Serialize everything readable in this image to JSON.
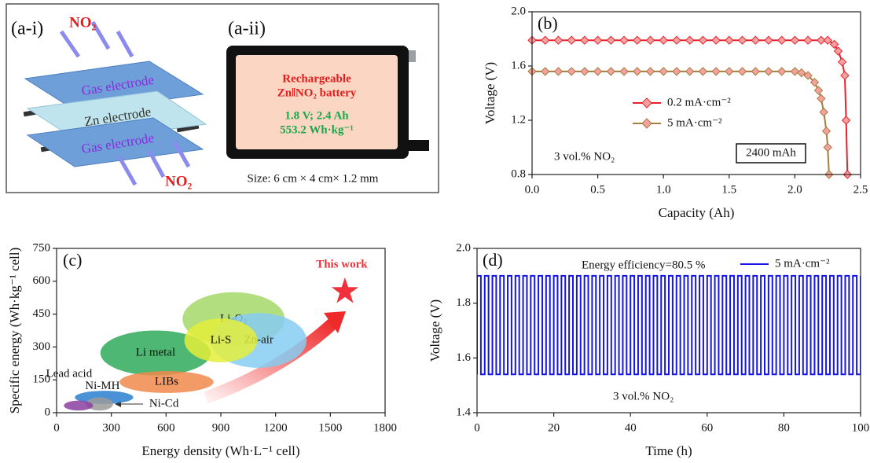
{
  "diagram_a": {
    "panel_i": {
      "label": "(a-i)",
      "top_gas": "NO₂",
      "layers": [
        "Gas electrode",
        "Zn electrode",
        "Gas electrode"
      ],
      "bottom_gas": "NO₂"
    },
    "panel_ii": {
      "label": "(a-ii)",
      "lines": [
        "Rechargeable",
        "Zn‖NO₂ battery",
        "1.8 V; 2.4 Ah",
        "553.2 Wh·kg⁻¹"
      ],
      "size": "Size: 6 cm × 4 cm× 1.2 mm"
    }
  },
  "chart_data": [
    {
      "type": "line",
      "panel_label": "(b)",
      "x_label": "Capacity (Ah)",
      "y_label": "Voltage (V)",
      "xlim": [
        0,
        2.5
      ],
      "xticks": [
        {
          "value": 0,
          "label": "0.0"
        },
        0.5,
        {
          "value": 1,
          "label": "1.0"
        },
        1.5,
        {
          "value": 2,
          "label": "2.0"
        },
        2.5
      ],
      "ylim": [
        0.8,
        2.0
      ],
      "yticks": [
        0.8,
        1.2,
        1.6,
        {
          "value": 2,
          "label": "2.0"
        }
      ],
      "annotations": [
        "3 vol.% NO₂",
        "2400 mAh"
      ],
      "series": [
        {
          "name": "0.2 mA·cm⁻²",
          "color": "#e8222a",
          "marker": "diamond",
          "x": [
            0,
            0.1,
            0.2,
            0.3,
            0.4,
            0.5,
            0.6,
            0.7,
            0.8,
            0.9,
            1.0,
            1.1,
            1.2,
            1.3,
            1.4,
            1.5,
            1.6,
            1.7,
            1.8,
            1.9,
            2.0,
            2.1,
            2.2,
            2.25,
            2.3,
            2.33,
            2.36,
            2.38,
            2.39,
            2.4
          ],
          "values": [
            1.79,
            1.79,
            1.79,
            1.79,
            1.79,
            1.79,
            1.79,
            1.79,
            1.79,
            1.79,
            1.79,
            1.79,
            1.79,
            1.79,
            1.79,
            1.79,
            1.79,
            1.79,
            1.79,
            1.79,
            1.79,
            1.79,
            1.79,
            1.79,
            1.76,
            1.71,
            1.63,
            1.53,
            1.2,
            0.8
          ]
        },
        {
          "name": "5 mA·cm⁻²",
          "color": "#a57d3c",
          "marker": "diamond",
          "x": [
            0,
            0.1,
            0.2,
            0.3,
            0.4,
            0.5,
            0.6,
            0.7,
            0.8,
            0.9,
            1.0,
            1.1,
            1.2,
            1.3,
            1.4,
            1.5,
            1.6,
            1.7,
            1.8,
            1.9,
            2.0,
            2.05,
            2.1,
            2.15,
            2.18,
            2.2,
            2.22,
            2.24,
            2.25,
            2.26
          ],
          "values": [
            1.56,
            1.56,
            1.56,
            1.56,
            1.56,
            1.56,
            1.56,
            1.56,
            1.56,
            1.56,
            1.56,
            1.56,
            1.56,
            1.56,
            1.56,
            1.56,
            1.56,
            1.56,
            1.56,
            1.56,
            1.56,
            1.55,
            1.53,
            1.48,
            1.42,
            1.36,
            1.26,
            1.12,
            1.0,
            0.8
          ]
        }
      ]
    },
    {
      "type": "region",
      "panel_label": "(c)",
      "x_label": "Energy density (Wh·L⁻¹ cell)",
      "y_label": "Specific energy (Wh·kg⁻¹ cell)",
      "xlim": [
        0,
        1800
      ],
      "xticks": [
        0,
        300,
        600,
        900,
        1200,
        1500,
        1800
      ],
      "ylim": [
        0,
        750
      ],
      "yticks": [
        0,
        150,
        300,
        450,
        600,
        750
      ],
      "regions": [
        {
          "name": "Li metal",
          "color": "#2eaa5a",
          "xrange": [
            240,
            845
          ],
          "yrange": [
            170,
            375
          ]
        },
        {
          "name": "Li-O₂",
          "color": "#a6d86a",
          "xrange": [
            690,
            1250
          ],
          "yrange": [
            305,
            550
          ]
        },
        {
          "name": "Zn-air",
          "color": "#86cdf2",
          "xrange": [
            845,
            1370
          ],
          "yrange": [
            205,
            455
          ]
        },
        {
          "name": "Li-S",
          "color": "#e4ef3a",
          "xrange": [
            700,
            1100
          ],
          "yrange": [
            230,
            430
          ]
        },
        {
          "name": "LIBs",
          "color": "#f08a4b",
          "xrange": [
            345,
            860
          ],
          "yrange": [
            90,
            190
          ]
        },
        {
          "name": "Ni-MH",
          "color": "#2a7fcf",
          "xrange": [
            100,
            420
          ],
          "yrange": [
            40,
            100
          ]
        },
        {
          "name": "Ni-Cd",
          "color": "#9a9a9a",
          "xrange": [
            160,
            310
          ],
          "yrange": [
            10,
            70
          ]
        },
        {
          "name": "Lead acid",
          "color": "#8b3fa0",
          "xrange": [
            40,
            200
          ],
          "yrange": [
            10,
            55
          ]
        }
      ],
      "highlight": {
        "label": "This work",
        "color": "#f0303a",
        "x": 1580,
        "y": 553
      }
    },
    {
      "type": "line",
      "panel_label": "(d)",
      "x_label": "Time (h)",
      "y_label": "Voltage (V)",
      "xlim": [
        0,
        100
      ],
      "xticks": [
        0,
        20,
        40,
        60,
        80,
        100
      ],
      "ylim": [
        1.4,
        2.0
      ],
      "yticks": [
        1.4,
        1.6,
        1.8,
        {
          "value": 2,
          "label": "2.0"
        }
      ],
      "annotations": [
        "Energy efficiency=80.5 %",
        "3 vol.% NO₂"
      ],
      "series": [
        {
          "name": "5 mA·cm⁻²",
          "color": "#1515e6",
          "x": [
            0,
            0,
            1,
            1,
            2,
            2,
            3,
            3,
            4,
            4,
            5,
            5,
            6,
            6,
            7,
            7,
            8,
            8,
            9,
            9,
            10,
            10,
            11,
            11,
            12,
            12,
            13,
            13,
            14,
            14,
            15,
            15,
            16,
            16,
            17,
            17,
            18,
            18,
            19,
            19,
            20,
            20,
            21,
            21,
            22,
            22,
            23,
            23,
            24,
            24,
            25,
            25,
            26,
            26,
            27,
            27,
            28,
            28,
            29,
            29,
            30,
            30,
            31,
            31,
            32,
            32,
            33,
            33,
            34,
            34,
            35,
            35,
            36,
            36,
            37,
            37,
            38,
            38,
            39,
            39,
            40,
            40,
            41,
            41,
            42,
            42,
            43,
            43,
            44,
            44,
            45,
            45,
            46,
            46,
            47,
            47,
            48,
            48,
            49,
            49,
            50,
            50,
            51,
            51,
            52,
            52,
            53,
            53,
            54,
            54,
            55,
            55,
            56,
            56,
            57,
            57,
            58,
            58,
            59,
            59,
            60,
            60,
            61,
            61,
            62,
            62,
            63,
            63,
            64,
            64,
            65,
            65,
            66,
            66,
            67,
            67,
            68,
            68,
            69,
            69,
            70,
            70,
            71,
            71,
            72,
            72,
            73,
            73,
            74,
            74,
            75,
            75,
            76,
            76,
            77,
            77,
            78,
            78,
            79,
            79,
            80,
            80,
            81,
            81,
            82,
            82,
            83,
            83,
            84,
            84,
            85,
            85,
            86,
            86,
            87,
            87,
            88,
            88,
            89,
            89,
            90,
            90,
            91,
            91,
            92,
            92,
            93,
            93,
            94,
            94,
            95,
            95,
            96,
            96,
            97,
            97,
            98,
            98,
            99,
            99,
            100,
            100
          ],
          "values": [
            1.54,
            1.9,
            1.9,
            1.54,
            1.54,
            1.9,
            1.9,
            1.54,
            1.54,
            1.9,
            1.9,
            1.54,
            1.54,
            1.9,
            1.9,
            1.54,
            1.54,
            1.9,
            1.9,
            1.54,
            1.54,
            1.9,
            1.9,
            1.54,
            1.54,
            1.9,
            1.9,
            1.54,
            1.54,
            1.9,
            1.9,
            1.54,
            1.54,
            1.9,
            1.9,
            1.54,
            1.54,
            1.9,
            1.9,
            1.54,
            1.54,
            1.9,
            1.9,
            1.54,
            1.54,
            1.9,
            1.9,
            1.54,
            1.54,
            1.9,
            1.9,
            1.54,
            1.54,
            1.9,
            1.9,
            1.54,
            1.54,
            1.9,
            1.9,
            1.54,
            1.54,
            1.9,
            1.9,
            1.54,
            1.54,
            1.9,
            1.9,
            1.54,
            1.54,
            1.9,
            1.9,
            1.54,
            1.54,
            1.9,
            1.9,
            1.54,
            1.54,
            1.9,
            1.9,
            1.54,
            1.54,
            1.9,
            1.9,
            1.54,
            1.54,
            1.9,
            1.9,
            1.54,
            1.54,
            1.9,
            1.9,
            1.54,
            1.54,
            1.9,
            1.9,
            1.54,
            1.54,
            1.9,
            1.9,
            1.54,
            1.54,
            1.9,
            1.9,
            1.54,
            1.54,
            1.9,
            1.9,
            1.54,
            1.54,
            1.9,
            1.9,
            1.54,
            1.54,
            1.9,
            1.9,
            1.54,
            1.54,
            1.9,
            1.9,
            1.54,
            1.54,
            1.9,
            1.9,
            1.54,
            1.54,
            1.9,
            1.9,
            1.54,
            1.54,
            1.9,
            1.9,
            1.54,
            1.54,
            1.9,
            1.9,
            1.54,
            1.54,
            1.9,
            1.9,
            1.54,
            1.54,
            1.9,
            1.9,
            1.54,
            1.54,
            1.9,
            1.9,
            1.54,
            1.54,
            1.9,
            1.9,
            1.54,
            1.54,
            1.9,
            1.9,
            1.54,
            1.54,
            1.9,
            1.9,
            1.54,
            1.54,
            1.9,
            1.9,
            1.54,
            1.54,
            1.9,
            1.9,
            1.54,
            1.54,
            1.9,
            1.9,
            1.54,
            1.54,
            1.9,
            1.9,
            1.54,
            1.54,
            1.9,
            1.9,
            1.54,
            1.54,
            1.9,
            1.9,
            1.54,
            1.54,
            1.9,
            1.9,
            1.54,
            1.54,
            1.9,
            1.9,
            1.54,
            1.54,
            1.9,
            1.9,
            1.54,
            1.54,
            1.9,
            1.9,
            1.54,
            1.54,
            1.9
          ]
        }
      ]
    }
  ]
}
